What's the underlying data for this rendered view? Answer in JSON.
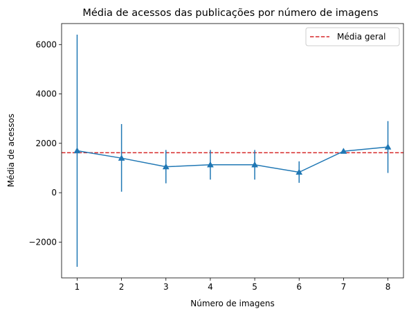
{
  "chart_data": {
    "type": "line",
    "title": "Média de acessos das publicações por número de imagens",
    "xlabel": "Número de imagens",
    "ylabel": "Média de acessos",
    "x": [
      1,
      2,
      3,
      4,
      5,
      6,
      7,
      8
    ],
    "xticks": [
      "1",
      "2",
      "3",
      "4",
      "5",
      "6",
      "7",
      "8"
    ],
    "yticks": [
      -2000,
      0,
      2000,
      4000,
      6000
    ],
    "ytick_labels": [
      "−2000",
      "0",
      "2000",
      "4000",
      "6000"
    ],
    "xlim": [
      0.65,
      8.35
    ],
    "ylim": [
      -3450,
      6850
    ],
    "series": [
      {
        "values": [
          1700,
          1400,
          1050,
          1130,
          1130,
          830,
          1680,
          1850
        ],
        "error_low": [
          -3000,
          40,
          380,
          530,
          530,
          400,
          1630,
          800
        ],
        "error_high": [
          6400,
          2780,
          1730,
          1730,
          1730,
          1270,
          1730,
          2900
        ],
        "color": "#1f77b4",
        "marker": "triangle"
      }
    ],
    "reference_line": {
      "name": "Média geral",
      "value": 1620,
      "color": "#d62728",
      "style": "dashed"
    },
    "legend": {
      "position": "top-right",
      "entries": [
        "Média geral"
      ]
    },
    "grid": false
  }
}
